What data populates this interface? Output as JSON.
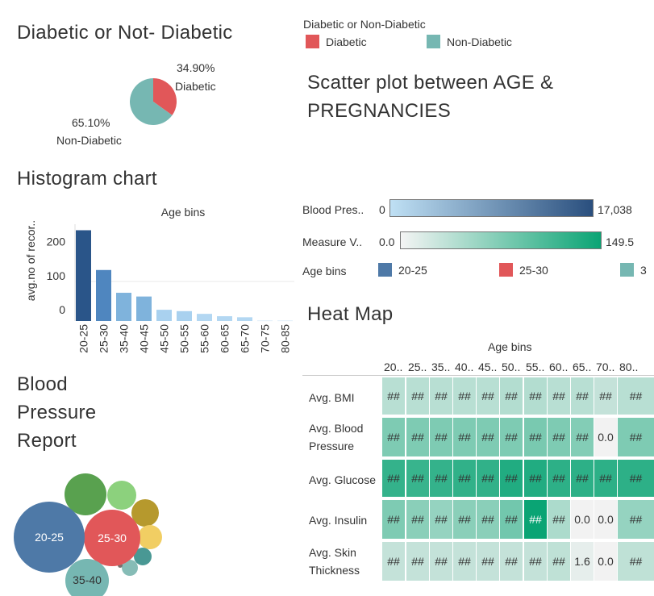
{
  "pie": {
    "title": "Diabetic or Not- Diabetic",
    "slices": [
      {
        "name": "Diabetic",
        "pct_label": "34.90%",
        "value": 34.9,
        "color": "#e15759"
      },
      {
        "name": "Non-Diabetic",
        "pct_label": "65.10%",
        "value": 65.1,
        "color": "#76b7b2"
      }
    ]
  },
  "legend": {
    "title": "Diabetic or Non-Diabetic",
    "items": [
      {
        "label": "Diabetic",
        "color": "#e15759"
      },
      {
        "label": "Non-Diabetic",
        "color": "#76b7b2"
      }
    ]
  },
  "scatter": {
    "title_line1": "Scatter plot between AGE &",
    "title_line2": "PREGNANCIES"
  },
  "histogram": {
    "title": "Histogram chart"
  },
  "bp_legend": {
    "label": "Blood Pres..",
    "min": "0",
    "max": "17,038",
    "colors": [
      "#bfe0f4",
      "#2a4f7e"
    ]
  },
  "measure_legend": {
    "label": "Measure V..",
    "min": "0.0",
    "max": "149.5",
    "colors": [
      "#f4f4f4",
      "#0aa474"
    ]
  },
  "agebins_legend": {
    "label": "Age bins",
    "items": [
      {
        "label": "20-25",
        "color": "#4e79a7"
      },
      {
        "label": "25-30",
        "color": "#e15759"
      },
      {
        "label": "3",
        "color": "#76b7b2"
      }
    ]
  },
  "bubble": {
    "title_lines": [
      "Blood",
      "Pressure",
      "Report"
    ],
    "labels": [
      "20-25",
      "25-30",
      "35-40"
    ]
  },
  "heatmap": {
    "title": "Heat Map",
    "col_header": "Age bins",
    "columns": [
      "20..",
      "25..",
      "35..",
      "40..",
      "45..",
      "50..",
      "55..",
      "60..",
      "65..",
      "70..",
      "80.."
    ],
    "rows": [
      {
        "label": "Avg. BMI",
        "cells": [
          "##",
          "##",
          "##",
          "##",
          "##",
          "##",
          "##",
          "##",
          "##",
          "##",
          "##"
        ],
        "levels": [
          0.25,
          0.25,
          0.25,
          0.25,
          0.25,
          0.27,
          0.27,
          0.25,
          0.25,
          0.2,
          0.25
        ]
      },
      {
        "label": "Avg. Blood Pressure",
        "cells": [
          "##",
          "##",
          "##",
          "##",
          "##",
          "##",
          "##",
          "##",
          "##",
          "0.0",
          "##"
        ],
        "levels": [
          0.5,
          0.5,
          0.5,
          0.5,
          0.5,
          0.5,
          0.52,
          0.5,
          0.48,
          0.0,
          0.5
        ]
      },
      {
        "label": "Avg. Glucose",
        "cells": [
          "##",
          "##",
          "##",
          "##",
          "##",
          "##",
          "##",
          "##",
          "##",
          "##",
          "##"
        ],
        "levels": [
          0.82,
          0.8,
          0.82,
          0.83,
          0.83,
          0.9,
          0.9,
          0.85,
          0.85,
          0.85,
          0.85
        ]
      },
      {
        "label": "Avg. Insulin",
        "cells": [
          "##",
          "##",
          "##",
          "##",
          "##",
          "##",
          "##",
          "##",
          "0.0",
          "0.0",
          "##"
        ],
        "levels": [
          0.5,
          0.45,
          0.4,
          0.45,
          0.45,
          0.55,
          1.0,
          0.3,
          0.0,
          0.0,
          0.4
        ]
      },
      {
        "label": "Avg. Skin Thickness",
        "cells": [
          "##",
          "##",
          "##",
          "##",
          "##",
          "##",
          "##",
          "##",
          "1.6",
          "0.0",
          "##"
        ],
        "levels": [
          0.2,
          0.2,
          0.2,
          0.2,
          0.2,
          0.2,
          0.2,
          0.22,
          0.05,
          0.0,
          0.22
        ]
      }
    ]
  },
  "chart_data": [
    {
      "type": "pie",
      "title": "Diabetic or Not- Diabetic",
      "categories": [
        "Diabetic",
        "Non-Diabetic"
      ],
      "values": [
        34.9,
        65.1
      ]
    },
    {
      "type": "bar",
      "title": "Histogram chart",
      "xlabel": "Age bins",
      "ylabel": "avg.no of recor..",
      "categories": [
        "20-25",
        "25-30",
        "35-40",
        "40-45",
        "45-50",
        "50-55",
        "55-60",
        "60-65",
        "65-70",
        "70-75",
        "80-85"
      ],
      "values": [
        267,
        150,
        83,
        72,
        33,
        29,
        21,
        14,
        11,
        1,
        1
      ],
      "ylim": [
        0,
        280
      ],
      "yticks": [
        "0",
        "100",
        "200"
      ],
      "colors": [
        "#2a5589",
        "#4f86bf",
        "#7fb3dc",
        "#7fb3dc",
        "#a9d1ef",
        "#a9d1ef",
        "#b3d7f2",
        "#b3d7f2",
        "#b3d7f2",
        "#c7e2f6",
        "#c7e2f6"
      ],
      "grid": false
    }
  ]
}
